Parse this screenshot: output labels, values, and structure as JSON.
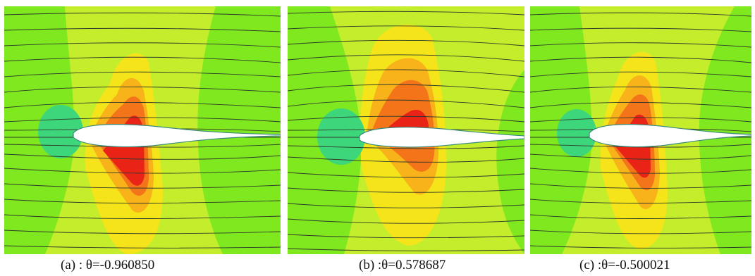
{
  "figures": [
    {
      "caption": "(a)   : θ=-0.960850"
    },
    {
      "caption": "(b)   :θ=0.578687"
    },
    {
      "caption": "(c)    :θ=-0.500021"
    }
  ],
  "colors": {
    "field_green": "#7fe81f",
    "yellow_green": "#c4ee2c",
    "yellow": "#f6e41a",
    "orange_light": "#f8b21a",
    "orange": "#f4741a",
    "red": "#e92416",
    "blue_green": "#3ed67a",
    "streamline": "#2f3a2a",
    "airfoil": "#ffffff"
  }
}
